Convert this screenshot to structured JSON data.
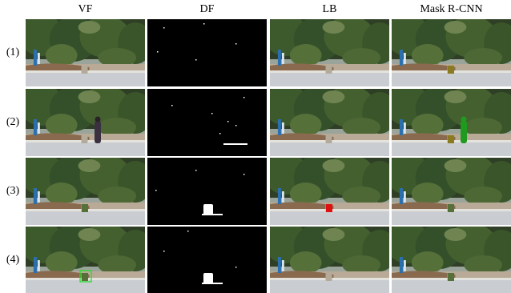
{
  "columns": [
    "VF",
    "DF",
    "LB",
    "Mask R-CNN"
  ],
  "rows": [
    "(1)",
    "(2)",
    "(3)",
    "(4)"
  ]
}
